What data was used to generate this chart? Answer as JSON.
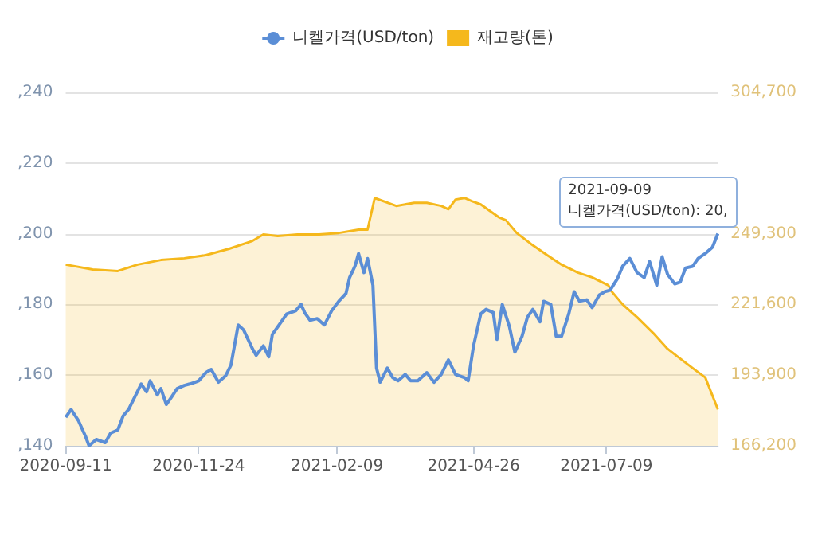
{
  "chart_data": {
    "type": "line",
    "legend": "top",
    "grid": "y",
    "marker": "none",
    "line_style": "solid",
    "xlim": [
      "2020-09-11",
      "2021-09-09"
    ],
    "xticks": [
      "2020-09-11",
      "2020-11-24",
      "2021-02-09",
      "2021-04-26",
      "2021-07-09"
    ],
    "ylim": [
      140,
      240
    ],
    "yticks": [
      {
        "value": 140,
        "label": ",140"
      },
      {
        "value": 160,
        "label": ",160"
      },
      {
        "value": 180,
        "label": ",180"
      },
      {
        "value": 200,
        "label": ",200"
      },
      {
        "value": 220,
        "label": ",220"
      },
      {
        "value": 240,
        "label": ",240"
      }
    ],
    "y2lim": [
      166200,
      304700
    ],
    "y2ticks": [
      {
        "value": 166200,
        "label": "166,200"
      },
      {
        "value": 193900,
        "label": "193,900"
      },
      {
        "value": 221600,
        "label": "221,600"
      },
      {
        "value": 249300,
        "label": "249,300"
      },
      {
        "value": 277000,
        "label": null
      },
      {
        "value": 304700,
        "label": "304,700"
      }
    ],
    "annotations": [
      {
        "text": "2021-09-09\n니켈가격(USD/ton): 20,",
        "x": "2021-09-09",
        "y": 200
      }
    ],
    "series": [
      {
        "name": "니켈가격(USD/ton)",
        "type": "line",
        "color": "#5b8ed6",
        "x": [
          "2020-09-11",
          "2020-09-14",
          "2020-09-18",
          "2020-09-22",
          "2020-09-24",
          "2020-09-28",
          "2020-10-03",
          "2020-10-06",
          "2020-10-10",
          "2020-10-13",
          "2020-10-16",
          "2020-10-20",
          "2020-10-23",
          "2020-10-26",
          "2020-10-28",
          "2020-11-01",
          "2020-11-03",
          "2020-11-06",
          "2020-11-09",
          "2020-11-12",
          "2020-11-16",
          "2020-11-19",
          "2020-11-22",
          "2020-11-24",
          "2020-11-28",
          "2020-12-01",
          "2020-12-05",
          "2020-12-09",
          "2020-12-12",
          "2020-12-16",
          "2020-12-19",
          "2020-12-24",
          "2020-12-26",
          "2020-12-30",
          "2021-01-02",
          "2021-01-04",
          "2021-01-09",
          "2021-01-12",
          "2021-01-17",
          "2021-01-20",
          "2021-01-22",
          "2021-01-25",
          "2021-01-29",
          "2021-02-02",
          "2021-02-06",
          "2021-02-10",
          "2021-02-14",
          "2021-02-16",
          "2021-02-19",
          "2021-02-21",
          "2021-02-24",
          "2021-02-26",
          "2021-03-01",
          "2021-03-03",
          "2021-03-05",
          "2021-03-09",
          "2021-03-12",
          "2021-03-15",
          "2021-03-19",
          "2021-03-22",
          "2021-03-26",
          "2021-03-31",
          "2021-04-04",
          "2021-04-08",
          "2021-04-12",
          "2021-04-16",
          "2021-04-21",
          "2021-04-23",
          "2021-04-26",
          "2021-04-30",
          "2021-05-03",
          "2021-05-07",
          "2021-05-09",
          "2021-05-12",
          "2021-05-16",
          "2021-05-19",
          "2021-05-23",
          "2021-05-26",
          "2021-05-29",
          "2021-06-02",
          "2021-06-04",
          "2021-06-08",
          "2021-06-11",
          "2021-06-14",
          "2021-06-18",
          "2021-06-21",
          "2021-06-24",
          "2021-06-28",
          "2021-07-01",
          "2021-07-05",
          "2021-07-08",
          "2021-07-11",
          "2021-07-15",
          "2021-07-18",
          "2021-07-22",
          "2021-07-26",
          "2021-07-30",
          "2021-08-02",
          "2021-08-06",
          "2021-08-09",
          "2021-08-12",
          "2021-08-16",
          "2021-08-19",
          "2021-08-22",
          "2021-08-26",
          "2021-08-29",
          "2021-09-02",
          "2021-09-06",
          "2021-09-09"
        ],
        "values": [
          148.1,
          150.3,
          147.2,
          142.7,
          140,
          141.8,
          140.9,
          143.6,
          144.5,
          148.5,
          150.3,
          154.4,
          157.5,
          155.3,
          158.4,
          154.4,
          156.2,
          151.7,
          153.9,
          156.2,
          157.1,
          157.5,
          158,
          158.4,
          160.7,
          161.6,
          158,
          159.8,
          162.9,
          174.2,
          172.8,
          167.4,
          165.6,
          168.3,
          165.2,
          171.5,
          175.1,
          177.3,
          178.2,
          180,
          177.7,
          175.5,
          176,
          174.2,
          178.2,
          180.9,
          183.1,
          187.6,
          190.8,
          194.4,
          189,
          193,
          185.4,
          162,
          158,
          162,
          159.3,
          158.4,
          160.2,
          158.4,
          158.4,
          160.7,
          158,
          160.2,
          164.3,
          160.2,
          159.3,
          158.4,
          168.3,
          177.3,
          178.6,
          177.7,
          170.1,
          180,
          173.7,
          166.5,
          171,
          176.4,
          178.6,
          175.1,
          180.9,
          180,
          171,
          171,
          177.3,
          183.6,
          180.9,
          181.3,
          179.1,
          182.7,
          183.6,
          184,
          187.2,
          190.8,
          193,
          189,
          187.6,
          192.1,
          185.4,
          193.5,
          188.5,
          185.8,
          186.3,
          190.3,
          190.8,
          193,
          194.4,
          196.2,
          200
        ]
      },
      {
        "name": "재고량(톤)",
        "type": "area",
        "axis": "y2",
        "color": "#f5b81c",
        "x": [
          "2020-09-11",
          "2020-09-26",
          "2020-10-10",
          "2020-10-21",
          "2020-11-03",
          "2020-11-16",
          "2020-11-28",
          "2020-12-11",
          "2020-12-24",
          "2020-12-30",
          "2021-01-07",
          "2021-01-18",
          "2021-01-30",
          "2021-02-10",
          "2021-02-21",
          "2021-02-26",
          "2021-03-02",
          "2021-03-14",
          "2021-03-24",
          "2021-03-31",
          "2021-04-08",
          "2021-04-12",
          "2021-04-16",
          "2021-04-21",
          "2021-04-25",
          "2021-04-30",
          "2021-05-05",
          "2021-05-10",
          "2021-05-14",
          "2021-05-20",
          "2021-05-28",
          "2021-06-06",
          "2021-06-14",
          "2021-06-23",
          "2021-07-01",
          "2021-07-10",
          "2021-07-12",
          "2021-07-18",
          "2021-07-26",
          "2021-08-04",
          "2021-08-12",
          "2021-08-19",
          "2021-08-27",
          "2021-09-02",
          "2021-09-09"
        ],
        "values": [
          237200,
          235300,
          234700,
          237200,
          239000,
          239700,
          240900,
          243400,
          246500,
          249000,
          248400,
          249000,
          249000,
          249600,
          250900,
          250900,
          263300,
          260200,
          261400,
          261400,
          260200,
          258900,
          262700,
          263300,
          262100,
          260800,
          258300,
          255800,
          254600,
          249600,
          245300,
          240900,
          237200,
          234100,
          232200,
          229100,
          226600,
          221600,
          216600,
          210400,
          204200,
          200400,
          196100,
          193000,
          180500
        ]
      }
    ]
  }
}
